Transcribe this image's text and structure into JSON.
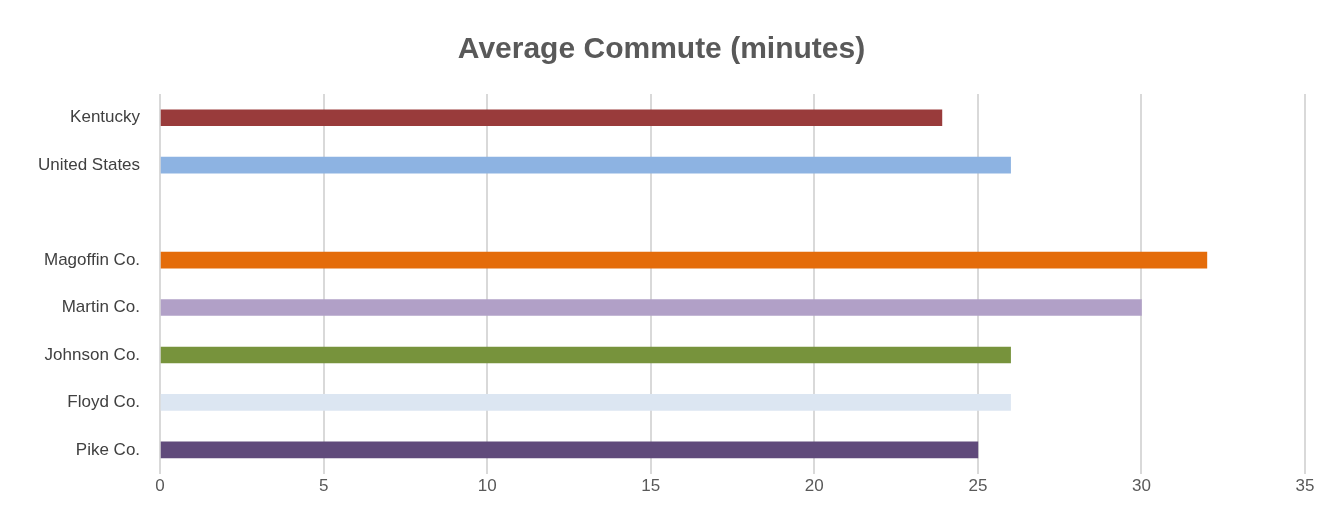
{
  "chart_data": {
    "type": "bar",
    "orientation": "horizontal",
    "title": "Average Commute (minutes)",
    "categories": [
      "Kentucky",
      "United States",
      null,
      "Magoffin Co.",
      "Martin Co.",
      "Johnson Co.",
      "Floyd Co.",
      "Pike Co."
    ],
    "values": [
      23.9,
      26,
      null,
      32,
      30,
      26,
      26,
      25
    ],
    "colors": [
      "#993b3b",
      "#8db3e2",
      "#ffffff",
      "#e46c0a",
      "#b1a0c7",
      "#77933c",
      "#dce6f2",
      "#604a7b"
    ],
    "xlim": [
      0,
      35
    ],
    "xticks": [
      0,
      5,
      10,
      15,
      20,
      25,
      30,
      35
    ],
    "grid": "x",
    "legend": false
  }
}
